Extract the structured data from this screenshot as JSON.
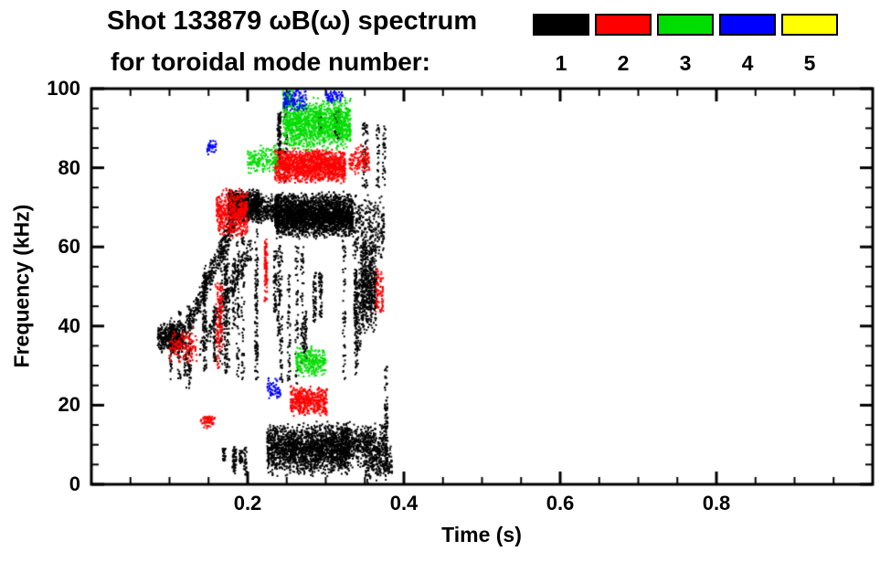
{
  "chart_data": {
    "type": "scatter",
    "title": "Shot 133879 ωB(ω) spectrum",
    "subtitle": "for toroidal mode number:",
    "xlabel": "Time (s)",
    "ylabel": "Frequency (kHz)",
    "xlim": [
      0.0,
      1.0
    ],
    "ylim": [
      0,
      100
    ],
    "grid": false,
    "legend_position": "top",
    "xticks": {
      "major": [
        0.2,
        0.4,
        0.6,
        0.8
      ],
      "labels": [
        "0.2",
        "0.4",
        "0.6",
        "0.8"
      ],
      "minor_step": 0.05
    },
    "yticks": {
      "major": [
        0,
        20,
        40,
        60,
        80,
        100
      ],
      "labels": [
        "0",
        "20",
        "40",
        "60",
        "80",
        "100"
      ],
      "minor_step": 5
    },
    "legend": [
      {
        "mode": "1",
        "color": "#000000"
      },
      {
        "mode": "2",
        "color": "#ff0000"
      },
      {
        "mode": "3",
        "color": "#00dd00"
      },
      {
        "mode": "4",
        "color": "#0000ff"
      },
      {
        "mode": "5",
        "color": "#ffff00"
      }
    ],
    "clusters": [
      {
        "mode": 1,
        "style": "blob",
        "t": [
          0.085,
          0.118
        ],
        "f": [
          33,
          41
        ],
        "n": 420
      },
      {
        "mode": 1,
        "style": "vstreaks",
        "t": [
          0.1,
          0.14
        ],
        "f": [
          24,
          46
        ],
        "n": 240,
        "streaks": 6
      },
      {
        "mode": 1,
        "style": "chirp",
        "from": [
          0.125,
          40
        ],
        "to": [
          0.185,
          68
        ],
        "n": 380,
        "jitter": 2.5
      },
      {
        "mode": 1,
        "style": "chirp",
        "from": [
          0.14,
          34
        ],
        "to": [
          0.205,
          60
        ],
        "n": 220,
        "jitter": 2
      },
      {
        "mode": 1,
        "style": "blob",
        "t": [
          0.175,
          0.215
        ],
        "f": [
          66,
          75
        ],
        "n": 800
      },
      {
        "mode": 1,
        "style": "blob",
        "t": [
          0.21,
          0.24
        ],
        "f": [
          65,
          74
        ],
        "n": 260
      },
      {
        "mode": 1,
        "style": "vstreaks",
        "t": [
          0.13,
          0.25
        ],
        "f": [
          25,
          65
        ],
        "n": 850,
        "streaks": 14
      },
      {
        "mode": 1,
        "style": "band",
        "t": [
          0.235,
          0.335
        ],
        "f": [
          62,
          74
        ],
        "n": 2600
      },
      {
        "mode": 1,
        "style": "vstreaks",
        "t": [
          0.24,
          0.345
        ],
        "f": [
          25,
          62
        ],
        "n": 650,
        "streaks": 12
      },
      {
        "mode": 1,
        "style": "blob",
        "t": [
          0.345,
          0.365
        ],
        "f": [
          38,
          62
        ],
        "n": 520
      },
      {
        "mode": 1,
        "style": "blob",
        "t": [
          0.335,
          0.375
        ],
        "f": [
          55,
          74
        ],
        "n": 300
      },
      {
        "mode": 1,
        "style": "vstreaks",
        "t": [
          0.34,
          0.375
        ],
        "f": [
          74,
          92
        ],
        "n": 130,
        "streaks": 4
      },
      {
        "mode": 1,
        "style": "vstreaks",
        "t": [
          0.29,
          0.325
        ],
        "f": [
          86,
          100
        ],
        "n": 110,
        "streaks": 3
      },
      {
        "mode": 1,
        "style": "vstreaks",
        "t": [
          0.24,
          0.26
        ],
        "f": [
          75,
          100
        ],
        "n": 140,
        "streaks": 3
      },
      {
        "mode": 1,
        "style": "band",
        "t": [
          0.225,
          0.33
        ],
        "f": [
          2,
          16
        ],
        "n": 1900
      },
      {
        "mode": 1,
        "style": "band",
        "t": [
          0.32,
          0.375
        ],
        "f": [
          4,
          16
        ],
        "n": 520
      },
      {
        "mode": 1,
        "style": "blob",
        "t": [
          0.35,
          0.385
        ],
        "f": [
          0,
          10
        ],
        "n": 180
      },
      {
        "mode": 1,
        "style": "vstreaks",
        "t": [
          0.155,
          0.205
        ],
        "f": [
          2,
          10
        ],
        "n": 150,
        "streaks": 5
      },
      {
        "mode": 1,
        "style": "vstreaks",
        "t": [
          0.372,
          0.388
        ],
        "f": [
          0,
          36
        ],
        "n": 130,
        "streaks": 2
      },
      {
        "mode": 2,
        "style": "band",
        "t": [
          0.235,
          0.325
        ],
        "f": [
          76,
          85
        ],
        "n": 1450
      },
      {
        "mode": 2,
        "style": "blob",
        "t": [
          0.16,
          0.2
        ],
        "f": [
          62,
          75
        ],
        "n": 480
      },
      {
        "mode": 2,
        "style": "blob",
        "t": [
          0.255,
          0.302
        ],
        "f": [
          17,
          25
        ],
        "n": 430
      },
      {
        "mode": 2,
        "style": "blob",
        "t": [
          0.1,
          0.135
        ],
        "f": [
          30,
          40
        ],
        "n": 130
      },
      {
        "mode": 2,
        "style": "vstreaks",
        "t": [
          0.14,
          0.168
        ],
        "f": [
          28,
          52
        ],
        "n": 120,
        "streaks": 4
      },
      {
        "mode": 2,
        "style": "vstreaks",
        "t": [
          0.205,
          0.228
        ],
        "f": [
          45,
          62
        ],
        "n": 100,
        "streaks": 3
      },
      {
        "mode": 2,
        "style": "blob",
        "t": [
          0.33,
          0.356
        ],
        "f": [
          78,
          86
        ],
        "n": 130
      },
      {
        "mode": 2,
        "style": "blob",
        "t": [
          0.14,
          0.158
        ],
        "f": [
          14,
          18
        ],
        "n": 60
      },
      {
        "mode": 2,
        "style": "vstreaks",
        "t": [
          0.352,
          0.372
        ],
        "f": [
          42,
          56
        ],
        "n": 80,
        "streaks": 2
      },
      {
        "mode": 3,
        "style": "band",
        "t": [
          0.245,
          0.332
        ],
        "f": [
          84,
          98
        ],
        "n": 1250
      },
      {
        "mode": 3,
        "style": "blob",
        "t": [
          0.2,
          0.238
        ],
        "f": [
          78,
          86
        ],
        "n": 160
      },
      {
        "mode": 3,
        "style": "blob",
        "t": [
          0.262,
          0.3
        ],
        "f": [
          27,
          35
        ],
        "n": 240
      },
      {
        "mode": 3,
        "style": "blob",
        "t": [
          0.245,
          0.258
        ],
        "f": [
          94,
          100
        ],
        "n": 70
      },
      {
        "mode": 4,
        "style": "blob",
        "t": [
          0.246,
          0.276
        ],
        "f": [
          94,
          100
        ],
        "n": 110
      },
      {
        "mode": 4,
        "style": "blob",
        "t": [
          0.3,
          0.322
        ],
        "f": [
          96,
          100
        ],
        "n": 60
      },
      {
        "mode": 4,
        "style": "blob",
        "t": [
          0.225,
          0.242
        ],
        "f": [
          21,
          27
        ],
        "n": 60
      },
      {
        "mode": 4,
        "style": "blob",
        "t": [
          0.148,
          0.16
        ],
        "f": [
          83,
          87
        ],
        "n": 40
      }
    ]
  }
}
